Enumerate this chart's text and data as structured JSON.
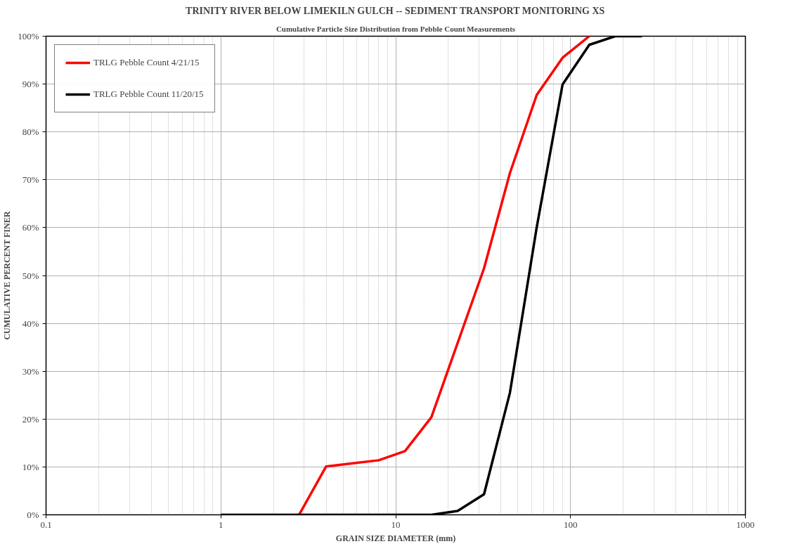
{
  "chart_data": {
    "type": "line",
    "title": "TRINITY RIVER BELOW LIMEKILN GULCH -- SEDIMENT TRANSPORT MONITORING XS",
    "subtitle": "Cumulative Particle Size Distribution from Pebble Count Measurements",
    "xlabel": "GRAIN SIZE DIAMETER (mm)",
    "ylabel": "CUMULATIVE PERCENT FINER",
    "log": "x",
    "xlim": [
      0.1,
      1000
    ],
    "xticks": [
      0.1,
      1,
      10,
      100,
      1000
    ],
    "ylim": [
      0,
      100
    ],
    "yticks": [
      {
        "value": 0,
        "label": "0%"
      },
      {
        "value": 10,
        "label": "10%"
      },
      {
        "value": 20,
        "label": "20%"
      },
      {
        "value": 30,
        "label": "30%"
      },
      {
        "value": 40,
        "label": "40%"
      },
      {
        "value": 50,
        "label": "50%"
      },
      {
        "value": 60,
        "label": "60%"
      },
      {
        "value": 70,
        "label": "70%"
      },
      {
        "value": 80,
        "label": "80%"
      },
      {
        "value": 90,
        "label": "90%"
      },
      {
        "value": 100,
        "label": "100%"
      }
    ],
    "grid": true,
    "legend": "top left",
    "marker": "none",
    "line_style": "solid",
    "series": [
      {
        "name": "TRLG Pebble Count 4/21/15",
        "color": "#ff0000",
        "x": [
          2.8,
          4,
          8,
          11.3,
          16,
          32,
          45,
          64,
          90,
          128
        ],
        "values": [
          0,
          10.1,
          11.4,
          13.3,
          20.4,
          51.5,
          71.4,
          87.7,
          95.5,
          100
        ]
      },
      {
        "name": "TRLG Pebble Count 11/20/15",
        "color": "#000000",
        "x": [
          1,
          2,
          4,
          8,
          16,
          22.6,
          32,
          45,
          64,
          90,
          128,
          180,
          256
        ],
        "values": [
          0,
          0,
          0,
          0,
          0,
          0.8,
          4.3,
          25.5,
          60,
          89.9,
          98.2,
          100,
          100
        ]
      }
    ]
  }
}
